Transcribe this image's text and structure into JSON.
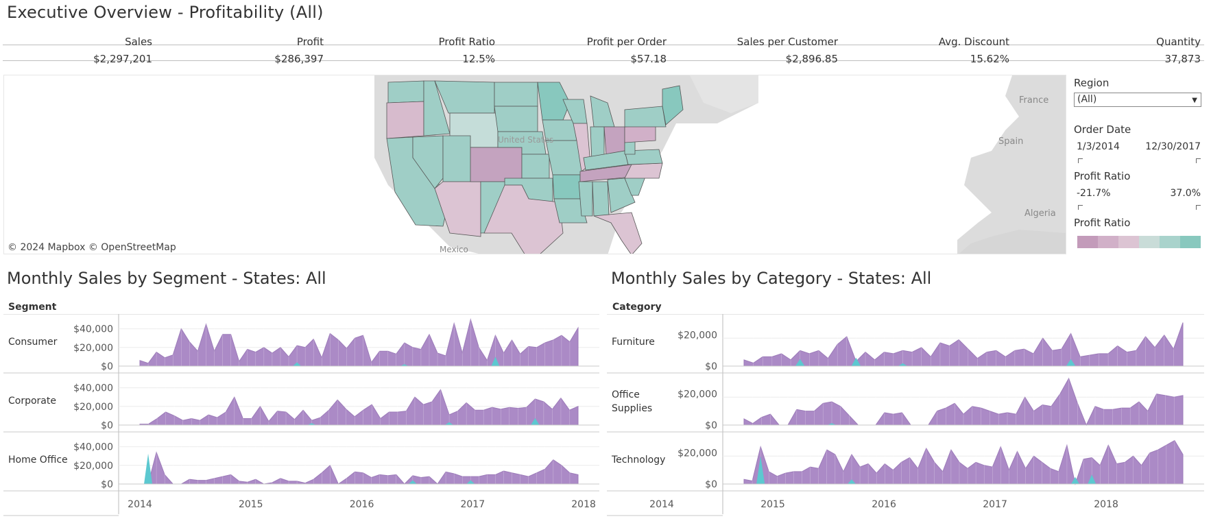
{
  "dashboard_title": "Executive Overview - Profitability (All)",
  "kpis": [
    {
      "label": "Sales",
      "value": "$2,297,201"
    },
    {
      "label": "Profit",
      "value": "$286,397"
    },
    {
      "label": "Profit Ratio",
      "value": "12.5%"
    },
    {
      "label": "Profit per Order",
      "value": "$57.18"
    },
    {
      "label": "Sales per Customer",
      "value": "$2,896.85"
    },
    {
      "label": "Avg. Discount",
      "value": "15.62%"
    },
    {
      "label": "Quantity",
      "value": "37,873"
    }
  ],
  "map": {
    "attribution": "© 2024 Mapbox  © OpenStreetMap",
    "labels": {
      "usa": "United States",
      "mexico": "Mexico",
      "france": "France",
      "spain": "Spain",
      "algeria": "Algeria"
    }
  },
  "filters": {
    "region": {
      "title": "Region",
      "value": "(All)"
    },
    "order_date": {
      "title": "Order Date",
      "min": "1/3/2014",
      "max": "12/30/2017"
    },
    "profit_ratio_filter": {
      "title": "Profit Ratio",
      "min": "-21.7%",
      "max": "37.0%"
    },
    "profit_ratio_legend": {
      "title": "Profit Ratio",
      "colors": [
        "#c39bba",
        "#d1b0c8",
        "#dcc4d3",
        "#c9dcd8",
        "#a9d3cc",
        "#88c8be"
      ]
    }
  },
  "colors": {
    "sales_area": "#ab8ac6",
    "sales_area_stroke": "#9c7bb9",
    "loss_area": "#5cc8d0",
    "grid": "#ebebeb",
    "profit_pos": "#8ecbc2",
    "profit_neg": "#c8a3bf"
  },
  "chart_data": [
    {
      "type": "area",
      "title": "Monthly Sales by Segment - States: All",
      "row_header": "Segment",
      "x_ticks": [
        "2014",
        "2015",
        "2016",
        "2017",
        "2018"
      ],
      "y_ticks": [
        "$40,000",
        "$20,000",
        "$0"
      ],
      "ylim": [
        0,
        50000
      ],
      "x": "monthly, Jan 2014 – Dec 2017",
      "series": [
        {
          "name": "Consumer",
          "values": [
            6000,
            3000,
            15000,
            9000,
            12000,
            40000,
            26000,
            16000,
            45000,
            16000,
            34000,
            34000,
            5000,
            18000,
            15000,
            20000,
            14000,
            20000,
            10000,
            22000,
            20000,
            29000,
            9000,
            35000,
            28000,
            19000,
            30000,
            33000,
            4000,
            16000,
            16000,
            13000,
            25000,
            20000,
            18000,
            34000,
            14000,
            11000,
            46000,
            14000,
            50000,
            20000,
            6000,
            33000,
            14000,
            28000,
            13000,
            21000,
            20000,
            25000,
            28000,
            33000,
            26000,
            41000
          ]
        },
        {
          "name": "Corporate",
          "values": [
            1000,
            1000,
            7000,
            14000,
            10000,
            5000,
            7000,
            5000,
            11000,
            8000,
            14000,
            30000,
            7000,
            7000,
            20000,
            4000,
            15000,
            14000,
            6000,
            16000,
            5000,
            8000,
            16000,
            27000,
            17000,
            9000,
            16000,
            22000,
            7000,
            14000,
            14000,
            15000,
            30000,
            22000,
            25000,
            38000,
            11000,
            15000,
            24000,
            16000,
            16000,
            19000,
            17000,
            19000,
            18000,
            19000,
            28000,
            25000,
            17000,
            29000,
            16000,
            20000
          ]
        },
        {
          "name": "Home Office",
          "values": [
            0,
            0,
            34000,
            10000,
            0,
            0,
            5000,
            4000,
            4000,
            6000,
            8000,
            10000,
            3000,
            2000,
            5000,
            0,
            1500,
            6000,
            3000,
            3000,
            1000,
            5000,
            12000,
            20000,
            0,
            6000,
            13000,
            12000,
            7000,
            10000,
            9000,
            10000,
            0,
            9000,
            7000,
            8000,
            0,
            13000,
            11000,
            8000,
            8000,
            8000,
            10000,
            10000,
            14000,
            12000,
            10000,
            8000,
            12000,
            16000,
            26000,
            20000,
            12000,
            10000
          ]
        }
      ],
      "loss_series": "cyan overlay for negative-profit months"
    },
    {
      "type": "area",
      "title": "Monthly Sales by Category - States: All",
      "row_header": "Category",
      "x_ticks": [
        "2014",
        "2015",
        "2016",
        "2017",
        "2018"
      ],
      "y_ticks": [
        "$20,000",
        "$0"
      ],
      "ylim": [
        0,
        30000
      ],
      "x": "monthly, Jan 2014 – Dec 2017",
      "series": [
        {
          "name": "Furniture",
          "values": [
            4000,
            2000,
            6000,
            6000,
            8000,
            4000,
            10000,
            8000,
            10000,
            5000,
            14000,
            19000,
            3000,
            9000,
            4000,
            9000,
            8000,
            10000,
            9000,
            12000,
            6000,
            15000,
            13000,
            17000,
            11000,
            5000,
            9000,
            10000,
            6000,
            10000,
            11000,
            8000,
            18000,
            10000,
            11000,
            21000,
            6000,
            7000,
            8000,
            8000,
            13000,
            9000,
            10000,
            19000,
            12000,
            20000,
            11000,
            28000
          ]
        },
        {
          "name": "Office Supplies",
          "values": [
            4000,
            1000,
            5000,
            7000,
            0,
            0,
            10000,
            9000,
            9000,
            14000,
            15000,
            12000,
            6000,
            0,
            0,
            0,
            8000,
            7000,
            8000,
            0,
            0,
            0,
            9000,
            11000,
            14000,
            7000,
            12000,
            11000,
            9000,
            7000,
            8000,
            7000,
            18000,
            9000,
            13000,
            12000,
            20000,
            32000,
            14000,
            0,
            12000,
            10000,
            10000,
            11000,
            11000,
            15000,
            9000,
            20000,
            19000,
            18000,
            19000
          ]
        },
        {
          "name": "Technology",
          "values": [
            3000,
            2000,
            24000,
            8000,
            5000,
            7000,
            8000,
            8000,
            11000,
            10000,
            22000,
            19000,
            8000,
            19000,
            11000,
            13000,
            7000,
            13000,
            9000,
            14000,
            17000,
            10000,
            23000,
            14000,
            8000,
            22000,
            14000,
            10000,
            14000,
            12000,
            11000,
            24000,
            9000,
            21000,
            10000,
            18000,
            14000,
            10000,
            8000,
            25000,
            0,
            16000,
            17000,
            12000,
            25000,
            13000,
            14000,
            18000,
            12000,
            20000,
            22000,
            25000,
            28000,
            19000
          ]
        }
      ],
      "loss_series": "cyan overlay for negative-profit months"
    }
  ]
}
